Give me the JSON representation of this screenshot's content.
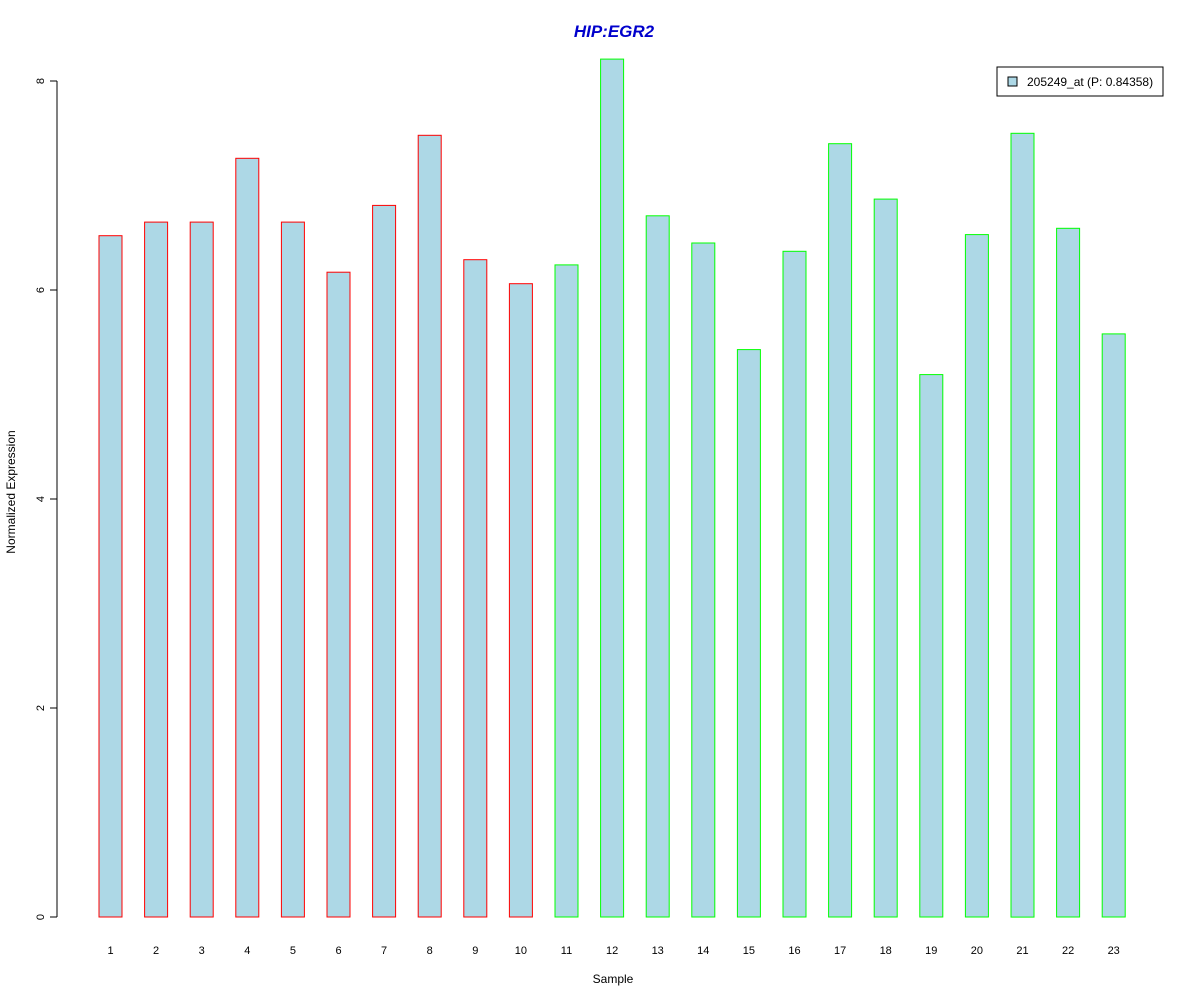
{
  "chart_data": {
    "type": "bar",
    "title": "HIP:EGR2",
    "xlabel": "Sample",
    "ylabel": "Normalized Expression",
    "categories": [
      "1",
      "2",
      "3",
      "4",
      "5",
      "6",
      "7",
      "8",
      "9",
      "10",
      "11",
      "12",
      "13",
      "14",
      "15",
      "16",
      "17",
      "18",
      "19",
      "20",
      "21",
      "22",
      "23"
    ],
    "series": [
      {
        "name": "205249_at (P: 0.84358)",
        "values": [
          6.52,
          6.65,
          6.65,
          7.26,
          6.65,
          6.17,
          6.81,
          7.48,
          6.29,
          6.06,
          6.24,
          8.21,
          6.71,
          6.45,
          5.43,
          6.37,
          7.4,
          6.87,
          5.19,
          6.53,
          7.5,
          6.59,
          5.58
        ]
      }
    ],
    "groups": [
      1,
      1,
      1,
      1,
      1,
      1,
      1,
      1,
      1,
      1,
      2,
      2,
      2,
      2,
      2,
      2,
      2,
      2,
      2,
      2,
      2,
      2,
      2
    ],
    "ylim": [
      0,
      8.2
    ],
    "yticks": [
      0,
      2,
      4,
      6,
      8
    ],
    "grid": false,
    "legend_position": "top-right",
    "colors": {
      "bar_fill": "#add8e6",
      "group1_border": "#ff0000",
      "group2_border": "#00ff00",
      "title": "#0000cc",
      "axis": "#000000"
    }
  }
}
